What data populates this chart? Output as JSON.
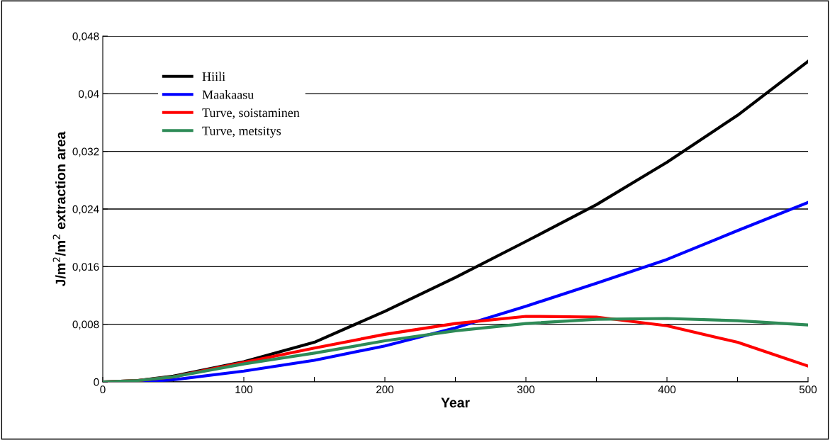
{
  "chart_data": {
    "type": "line",
    "xlabel": "Year",
    "ylabel": "J/m$^{2}$/m$^{2}$ extraction area",
    "x": [
      0,
      25,
      50,
      100,
      150,
      200,
      250,
      300,
      350,
      400,
      450,
      500
    ],
    "series": [
      {
        "name": "Hiili",
        "color": "#000000",
        "values": [
          0,
          0.0002,
          0.0008,
          0.0028,
          0.0055,
          0.0098,
          0.0145,
          0.0195,
          0.0246,
          0.0305,
          0.037,
          0.0445
        ]
      },
      {
        "name": "Maakaasu",
        "color": "#0000ff",
        "values": [
          0,
          0,
          0.0003,
          0.0015,
          0.003,
          0.005,
          0.0075,
          0.0105,
          0.0137,
          0.017,
          0.021,
          0.0249
        ]
      },
      {
        "name": "Turve, soistaminen",
        "color": "#ff0000",
        "values": [
          0,
          0.0002,
          0.0007,
          0.0027,
          0.0047,
          0.0066,
          0.0081,
          0.0091,
          0.009,
          0.0078,
          0.0055,
          0.0022
        ]
      },
      {
        "name": "Turve, metsitys",
        "color": "#2e8b57",
        "values": [
          0,
          0.0002,
          0.0007,
          0.0025,
          0.004,
          0.0057,
          0.0071,
          0.0081,
          0.0087,
          0.0088,
          0.0085,
          0.0079
        ]
      }
    ],
    "xlim": [
      0,
      500
    ],
    "xticks": [
      0,
      {
        "value": 50,
        "label": null
      },
      100,
      {
        "value": 150,
        "label": null
      },
      200,
      {
        "value": 250,
        "label": null
      },
      300,
      {
        "value": 350,
        "label": null
      },
      400,
      {
        "value": 450,
        "label": null
      },
      500
    ],
    "ylim": [
      0,
      0.048
    ],
    "yticks": [
      0,
      {
        "value": 0.008,
        "label": "0,008"
      },
      {
        "value": 0.016,
        "label": "0,016"
      },
      {
        "value": 0.024,
        "label": "0,024"
      },
      {
        "value": 0.032,
        "label": "0,032"
      },
      {
        "value": 0.04,
        "label": "0,04"
      },
      {
        "value": 0.048,
        "label": "0,048"
      }
    ],
    "grid": "y",
    "legend": "top left",
    "marker": "none",
    "line_style": "solid"
  }
}
